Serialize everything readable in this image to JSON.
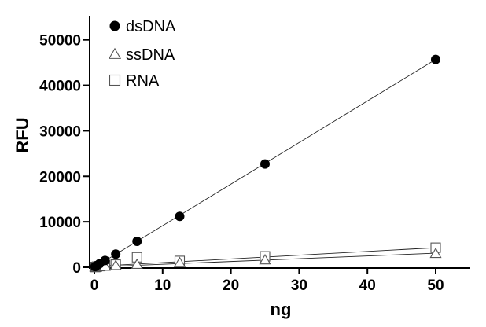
{
  "chart_data": {
    "type": "scatter",
    "title": "",
    "xlabel": "ng",
    "ylabel": "RFU",
    "xlim": [
      0,
      55
    ],
    "ylim": [
      0,
      55000
    ],
    "xticks": [
      "0",
      "10",
      "20",
      "30",
      "40",
      "50"
    ],
    "yticks": [
      "0",
      "10000",
      "20000",
      "30000",
      "40000",
      "50000"
    ],
    "legend_position": "top-left",
    "grid": false,
    "series": [
      {
        "name": "dsDNA",
        "marker": "filled-circle",
        "color": "#000000",
        "x": [
          0.1,
          0.2,
          0.39,
          0.78,
          1.56,
          3.13,
          6.25,
          12.5,
          25,
          50
        ],
        "y": [
          150,
          250,
          400,
          800,
          1500,
          2900,
          5700,
          11200,
          22700,
          45700
        ],
        "fit_line": [
          [
            0,
            0
          ],
          [
            50,
            45700
          ]
        ]
      },
      {
        "name": "ssDNA",
        "marker": "open-triangle",
        "color": "#000000",
        "x": [
          0.1,
          0.2,
          0.39,
          0.78,
          1.56,
          3.13,
          6.25,
          12.5,
          25,
          50
        ],
        "y": [
          30,
          50,
          80,
          120,
          200,
          350,
          600,
          1000,
          1600,
          3000
        ],
        "fit_line": [
          [
            0,
            50
          ],
          [
            50,
            3100
          ]
        ]
      },
      {
        "name": "RNA",
        "marker": "open-square",
        "color": "#000000",
        "x": [
          0.1,
          0.2,
          0.39,
          0.78,
          1.56,
          3.13,
          6.25,
          12.5,
          25,
          50
        ],
        "y": [
          50,
          80,
          150,
          250,
          400,
          600,
          2200,
          1400,
          2400,
          4300
        ],
        "error": [
          0,
          0,
          0,
          0,
          0,
          0,
          600,
          0,
          0,
          0
        ],
        "fit_line": [
          [
            0,
            200
          ],
          [
            50,
            4300
          ]
        ]
      }
    ]
  }
}
